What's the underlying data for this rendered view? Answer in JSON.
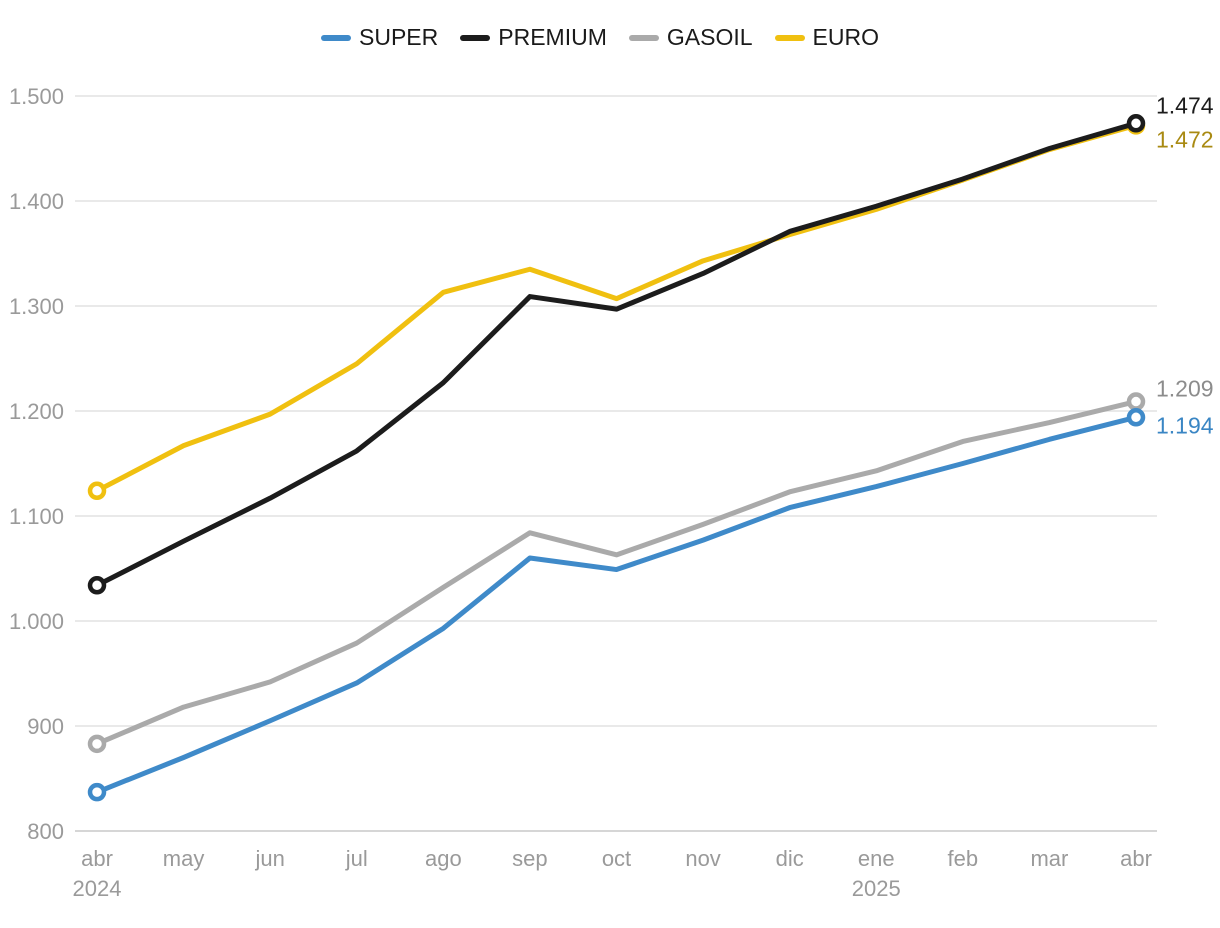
{
  "chart_data": {
    "type": "line",
    "categories": [
      "abr",
      "may",
      "jun",
      "jul",
      "ago",
      "sep",
      "oct",
      "nov",
      "dic",
      "ene",
      "feb",
      "mar",
      "abr"
    ],
    "year_labels": [
      {
        "index": 0,
        "label": "2024"
      },
      {
        "index": 9,
        "label": "2025"
      }
    ],
    "ylim": [
      800,
      1500
    ],
    "yticks": [
      800,
      900,
      1000,
      1100,
      1200,
      1300,
      1400,
      1500
    ],
    "ytick_labels": [
      "800",
      "900",
      "1.000",
      "1.100",
      "1.200",
      "1.300",
      "1.400",
      "1.500"
    ],
    "grid": true,
    "legend_position": "top-center",
    "series": [
      {
        "name": "SUPER",
        "color": "#3f8ac9",
        "values": [
          837,
          870,
          905,
          941,
          993,
          1060,
          1049,
          1077,
          1108,
          1128,
          1150,
          1173,
          1194
        ],
        "end_label": "1.194"
      },
      {
        "name": "PREMIUM",
        "color": "#1c1c1c",
        "values": [
          1034,
          1076,
          1117,
          1162,
          1227,
          1309,
          1297,
          1331,
          1371,
          1395,
          1421,
          1450,
          1474
        ],
        "end_label": "1.474"
      },
      {
        "name": "GASOIL",
        "color": "#aaaaaa",
        "values": [
          883,
          918,
          942,
          979,
          1032,
          1084,
          1063,
          1092,
          1123,
          1143,
          1171,
          1189,
          1209
        ],
        "end_label": "1.209"
      },
      {
        "name": "EURO",
        "color": "#f0c010",
        "values": [
          1124,
          1167,
          1197,
          1245,
          1313,
          1335,
          1307,
          1343,
          1368,
          1392,
          1420,
          1449,
          1472
        ],
        "end_label": "1.472"
      }
    ]
  }
}
